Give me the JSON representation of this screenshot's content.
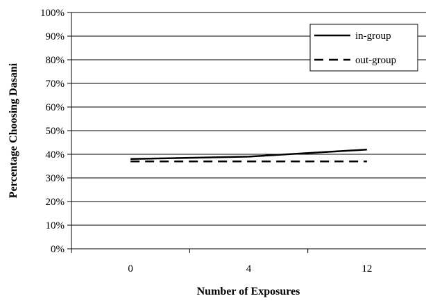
{
  "chart_data": {
    "type": "line",
    "title": "",
    "xlabel": "Number of Exposures",
    "ylabel": "Percentage Choosing Dasani",
    "categories": [
      "0",
      "4",
      "12"
    ],
    "y_ticks": [
      "0%",
      "10%",
      "20%",
      "30%",
      "40%",
      "50%",
      "60%",
      "70%",
      "80%",
      "90%",
      "100%"
    ],
    "ylim": [
      0,
      100
    ],
    "y_unit": "%",
    "grid": true,
    "legend_position": "top-right",
    "series": [
      {
        "name": "in-group",
        "style": "solid",
        "color": "#000000",
        "values": [
          38,
          39,
          42
        ]
      },
      {
        "name": "out-group",
        "style": "dashed",
        "color": "#000000",
        "values": [
          37,
          37,
          37
        ]
      }
    ]
  }
}
